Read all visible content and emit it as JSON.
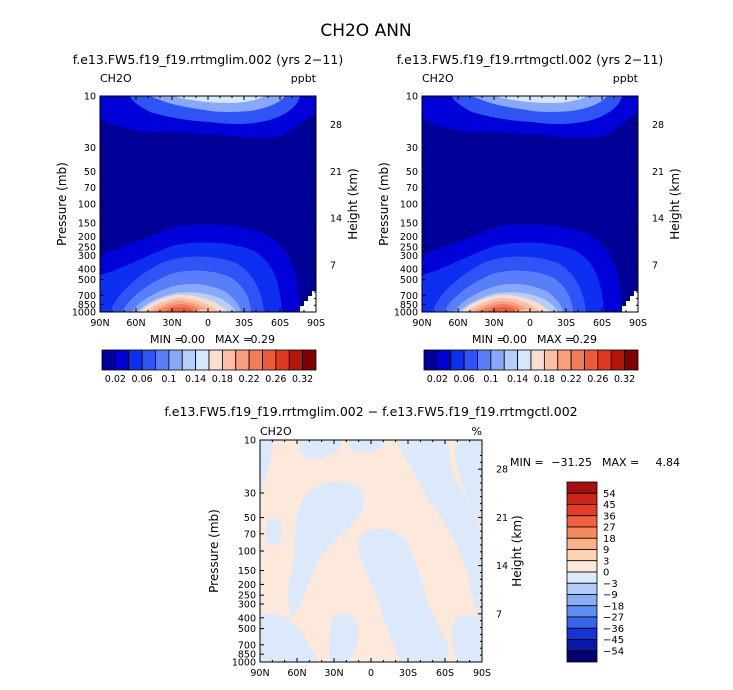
{
  "figure": {
    "title": "CH2O  ANN",
    "diff_title": "f.e13.FW5.f19_f19.rrtmglim.002 − f.e13.FW5.f19_f19.rrtmgctl.002"
  },
  "chart_data": [
    {
      "type": "heatmap",
      "title": "f.e13.FW5.f19_f19.rrtmglim.002 (yrs 2−11)",
      "variable": "CH2O",
      "units": "ppbt",
      "xlabel": "",
      "ylabel": "Pressure (mb)",
      "ylabel_right": "Height (km)",
      "x_ticks": [
        "90N",
        "60N",
        "30N",
        "0",
        "30S",
        "60S",
        "90S"
      ],
      "y_ticks": [
        "10",
        "30",
        "50",
        "70",
        "100",
        "150",
        "200",
        "250",
        "300",
        "400",
        "500",
        "700",
        "850",
        "1000"
      ],
      "y_right_ticks": [
        "28",
        "21",
        "14",
        "7"
      ],
      "ylim": [
        1000,
        10
      ],
      "min_label": "MIN =",
      "min_value": "0.00",
      "max_label": "MAX =",
      "max_value": "0.29",
      "colorbar_labels": [
        "0.02",
        "0.06",
        "0.1",
        "0.14",
        "0.18",
        "0.22",
        "0.26",
        "0.32"
      ],
      "colorbar_colors": [
        "#000099",
        "#0000d9",
        "#0c2ff2",
        "#2e54f5",
        "#587ff8",
        "#88a8f9",
        "#b4cffb",
        "#d6e6fc",
        "#f9ddcf",
        "#fbc0a5",
        "#f9a07e",
        "#f57c5b",
        "#ef5a3d",
        "#e0391f",
        "#b5150b",
        "#800000"
      ]
    },
    {
      "type": "heatmap",
      "title": "f.e13.FW5.f19_f19.rrtmgctl.002 (yrs 2−11)",
      "variable": "CH2O",
      "units": "ppbt",
      "xlabel": "",
      "ylabel": "Pressure (mb)",
      "ylabel_right": "Height (km)",
      "x_ticks": [
        "90N",
        "60N",
        "30N",
        "0",
        "30S",
        "60S",
        "90S"
      ],
      "y_ticks": [
        "10",
        "30",
        "50",
        "70",
        "100",
        "150",
        "200",
        "250",
        "300",
        "400",
        "500",
        "700",
        "850",
        "1000"
      ],
      "y_right_ticks": [
        "28",
        "21",
        "14",
        "7"
      ],
      "ylim": [
        1000,
        10
      ],
      "min_label": "MIN =",
      "min_value": "0.00",
      "max_label": "MAX =",
      "max_value": "0.29",
      "colorbar_labels": [
        "0.02",
        "0.06",
        "0.1",
        "0.14",
        "0.18",
        "0.22",
        "0.26",
        "0.32"
      ],
      "colorbar_colors": [
        "#000099",
        "#0000d9",
        "#0c2ff2",
        "#2e54f5",
        "#587ff8",
        "#88a8f9",
        "#b4cffb",
        "#d6e6fc",
        "#f9ddcf",
        "#fbc0a5",
        "#f9a07e",
        "#f57c5b",
        "#ef5a3d",
        "#e0391f",
        "#b5150b",
        "#800000"
      ]
    },
    {
      "type": "heatmap",
      "title": "f.e13.FW5.f19_f19.rrtmglim.002 − f.e13.FW5.f19_f19.rrtmgctl.002",
      "variable": "CH2O",
      "units": "%",
      "xlabel": "",
      "ylabel": "Pressure (mb)",
      "ylabel_right": "Height (km)",
      "x_ticks": [
        "90N",
        "60N",
        "30N",
        "0",
        "30S",
        "60S",
        "90S"
      ],
      "y_ticks": [
        "10",
        "30",
        "50",
        "70",
        "100",
        "150",
        "200",
        "250",
        "300",
        "400",
        "500",
        "700",
        "850",
        "1000"
      ],
      "y_right_ticks": [
        "28",
        "21",
        "14",
        "7"
      ],
      "ylim": [
        1000,
        10
      ],
      "min_label": "MIN =",
      "min_value": "−31.25",
      "max_label": "MAX =",
      "max_value": "4.84",
      "colorbar_labels": [
        "54",
        "45",
        "36",
        "27",
        "18",
        "9",
        "3",
        "0",
        "−3",
        "−9",
        "−18",
        "−27",
        "−36",
        "−45",
        "−54"
      ],
      "colorbar_colors": [
        "#a50f0f",
        "#cc2418",
        "#e83d25",
        "#f2623e",
        "#f7895e",
        "#fbb089",
        "#fdd3b5",
        "#fde9dc",
        "#dbe9fb",
        "#b3cdf8",
        "#8aaef4",
        "#5f8ff0",
        "#3666ea",
        "#1434d6",
        "#0a16a8",
        "#000073"
      ]
    }
  ]
}
